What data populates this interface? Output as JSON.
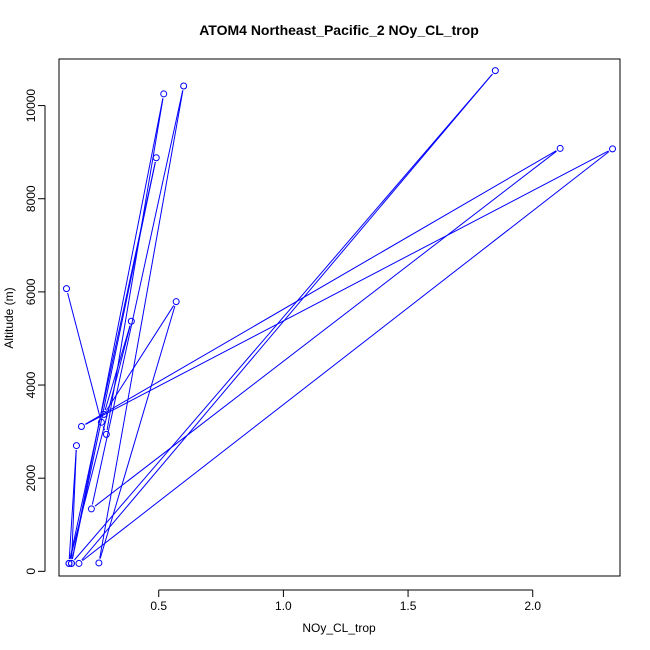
{
  "chart_data": {
    "type": "line",
    "title": "ATOM4 Northeast_Pacific_2 NOy_CL_trop",
    "xlabel": "NOy_CL_trop",
    "ylabel": "Altitude (m)",
    "xlim": [
      0.1,
      2.35
    ],
    "ylim": [
      -100,
      11000
    ],
    "xticks": [
      0.5,
      1.0,
      1.5,
      2.0
    ],
    "xtick_labels": [
      "0.5",
      "1.0",
      "1.5",
      "2.0"
    ],
    "yticks": [
      0,
      2000,
      4000,
      6000,
      8000,
      10000
    ],
    "ytick_labels": [
      "0",
      "2000",
      "4000",
      "6000",
      "8000",
      "10000"
    ],
    "grid": false,
    "colors": {
      "series": "#0000ff"
    },
    "series": [
      {
        "style": "points-and-lines",
        "points": [
          [
            0.13,
            6070
          ],
          [
            0.27,
            3200
          ],
          [
            0.29,
            2940
          ],
          [
            0.52,
            10250
          ],
          [
            0.15,
            170
          ],
          [
            0.49,
            8880
          ],
          [
            0.14,
            170
          ],
          [
            0.17,
            2700
          ],
          [
            0.15,
            170
          ],
          [
            1.85,
            10750
          ],
          [
            0.18,
            170
          ],
          [
            2.32,
            9070
          ],
          [
            0.19,
            3110
          ],
          [
            2.11,
            9080
          ],
          [
            0.23,
            1340
          ],
          [
            0.6,
            10420
          ],
          [
            0.26,
            180
          ],
          [
            0.57,
            5790
          ],
          [
            0.28,
            3370
          ],
          [
            0.39,
            5370
          ],
          [
            0.14,
            170
          ]
        ]
      }
    ]
  }
}
